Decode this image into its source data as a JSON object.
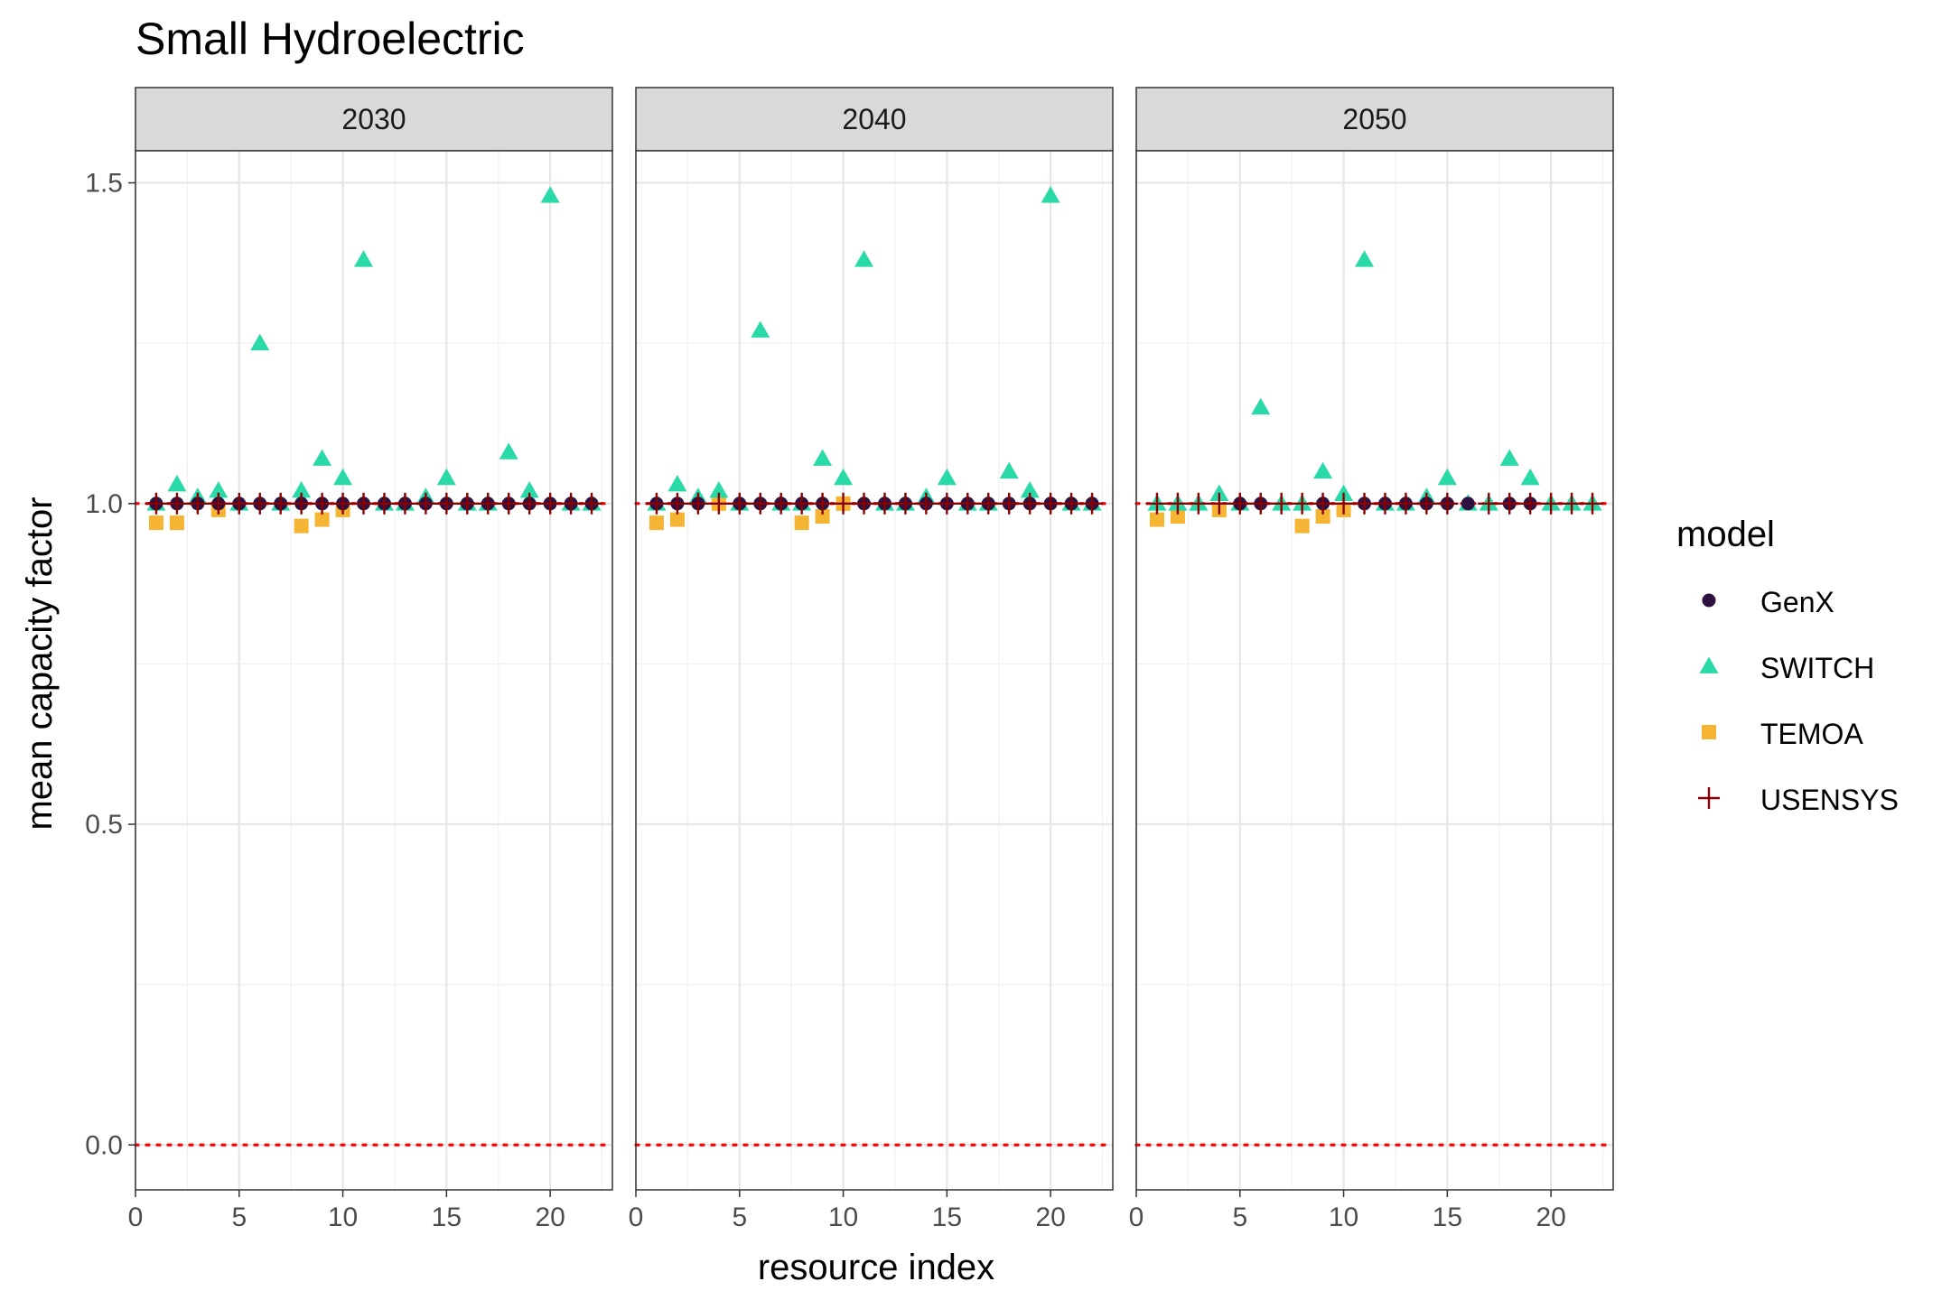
{
  "title": "Small Hydroelectric",
  "chart_data": {
    "type": "scatter",
    "title": "Small Hydroelectric",
    "xlabel": "resource index",
    "ylabel": "mean capacity factor",
    "xlim": [
      0,
      23
    ],
    "ylim": [
      -0.07,
      1.55
    ],
    "x_ticks": [
      0,
      5,
      10,
      15,
      20
    ],
    "y_ticks": [
      0.0,
      0.5,
      1.0,
      1.5
    ],
    "y_tick_labels": [
      "0.0",
      "0.5",
      "1.0",
      "1.5"
    ],
    "reference_lines": [
      0,
      1
    ],
    "reference_line_color": "#ff0000",
    "grid": true,
    "legend_title": "model",
    "legend_position": "right",
    "series_styles": [
      {
        "name": "GenX",
        "shape": "circle",
        "color": "#2d1140"
      },
      {
        "name": "SWITCH",
        "shape": "triangle",
        "color": "#2ad9a8"
      },
      {
        "name": "TEMOA",
        "shape": "square",
        "color": "#f5b431"
      },
      {
        "name": "USENSYS",
        "shape": "plus",
        "color": "#8b0000"
      }
    ],
    "panels": [
      {
        "label": "2030",
        "series": [
          {
            "name": "GenX",
            "x": [
              1,
              2,
              3,
              4,
              5,
              6,
              7,
              8,
              9,
              10,
              11,
              12,
              13,
              14,
              15,
              16,
              17,
              18,
              19,
              20,
              21,
              22
            ],
            "y": [
              1,
              1,
              1,
              1,
              1,
              1,
              1,
              1,
              1,
              1,
              1,
              1,
              1,
              1,
              1,
              1,
              1,
              1,
              1,
              1,
              1,
              1
            ]
          },
          {
            "name": "SWITCH",
            "x": [
              1,
              2,
              3,
              4,
              5,
              6,
              7,
              8,
              9,
              10,
              11,
              12,
              13,
              14,
              15,
              16,
              17,
              18,
              19,
              20,
              21,
              22
            ],
            "y": [
              1.0,
              1.03,
              1.01,
              1.02,
              1.0,
              1.25,
              1.0,
              1.02,
              1.07,
              1.04,
              1.38,
              1.0,
              1.0,
              1.01,
              1.04,
              1.0,
              1.0,
              1.08,
              1.02,
              1.48,
              1.0,
              1.0
            ]
          },
          {
            "name": "TEMOA",
            "x": [
              1,
              2,
              4,
              8,
              9,
              10
            ],
            "y": [
              0.97,
              0.97,
              0.99,
              0.965,
              0.975,
              0.99
            ]
          },
          {
            "name": "USENSYS",
            "x": [
              1,
              2,
              3,
              4,
              5,
              6,
              7,
              8,
              9,
              10,
              11,
              12,
              13,
              14,
              15,
              16,
              17,
              18,
              19,
              20,
              21,
              22
            ],
            "y": [
              1,
              1,
              1,
              1,
              1,
              1,
              1,
              1,
              1,
              1,
              1,
              1,
              1,
              1,
              1,
              1,
              1,
              1,
              1,
              1,
              1,
              1
            ]
          }
        ]
      },
      {
        "label": "2040",
        "series": [
          {
            "name": "GenX",
            "x": [
              1,
              2,
              3,
              5,
              6,
              7,
              8,
              9,
              11,
              12,
              13,
              14,
              15,
              16,
              17,
              18,
              19,
              20,
              21,
              22
            ],
            "y": [
              1,
              1,
              1,
              1,
              1,
              1,
              1,
              1,
              1,
              1,
              1,
              1,
              1,
              1,
              1,
              1,
              1,
              1,
              1,
              1
            ]
          },
          {
            "name": "SWITCH",
            "x": [
              1,
              2,
              3,
              4,
              5,
              6,
              7,
              8,
              9,
              10,
              11,
              12,
              13,
              14,
              15,
              16,
              17,
              18,
              19,
              20,
              21,
              22
            ],
            "y": [
              1.0,
              1.03,
              1.01,
              1.02,
              1.0,
              1.27,
              1.0,
              1.0,
              1.07,
              1.04,
              1.38,
              1.0,
              1.0,
              1.01,
              1.04,
              1.0,
              1.0,
              1.05,
              1.02,
              1.48,
              1.0,
              1.0
            ]
          },
          {
            "name": "TEMOA",
            "x": [
              1,
              2,
              4,
              8,
              9,
              10
            ],
            "y": [
              0.97,
              0.975,
              1.0,
              0.97,
              0.98,
              1.0
            ]
          },
          {
            "name": "USENSYS",
            "x": [
              1,
              2,
              3,
              4,
              5,
              6,
              7,
              8,
              9,
              10,
              11,
              12,
              13,
              14,
              15,
              16,
              17,
              18,
              19,
              20,
              21,
              22
            ],
            "y": [
              1,
              1,
              1,
              1,
              1,
              1,
              1,
              1,
              1,
              1,
              1,
              1,
              1,
              1,
              1,
              1,
              1,
              1,
              1,
              1,
              1,
              1
            ]
          }
        ]
      },
      {
        "label": "2050",
        "series": [
          {
            "name": "GenX",
            "x": [
              5,
              6,
              9,
              11,
              12,
              13,
              14,
              15,
              16,
              18,
              19
            ],
            "y": [
              1,
              1,
              1,
              1,
              1,
              1,
              1,
              1,
              1,
              1,
              1
            ]
          },
          {
            "name": "SWITCH",
            "x": [
              1,
              2,
              3,
              4,
              5,
              6,
              7,
              8,
              9,
              10,
              11,
              12,
              13,
              14,
              15,
              16,
              17,
              18,
              19,
              20,
              21,
              22
            ],
            "y": [
              1.0,
              1.0,
              1.0,
              1.015,
              1.0,
              1.15,
              1.0,
              1.0,
              1.05,
              1.015,
              1.38,
              1.0,
              1.0,
              1.01,
              1.04,
              1.0,
              1.0,
              1.07,
              1.04,
              1.0,
              1.0,
              1.0
            ]
          },
          {
            "name": "TEMOA",
            "x": [
              1,
              2,
              4,
              8,
              9,
              10
            ],
            "y": [
              0.975,
              0.98,
              0.99,
              0.965,
              0.98,
              0.99
            ]
          },
          {
            "name": "USENSYS",
            "x": [
              1,
              2,
              3,
              4,
              5,
              6,
              7,
              8,
              9,
              10,
              11,
              12,
              13,
              14,
              15,
              17,
              18,
              19,
              20,
              21,
              22
            ],
            "y": [
              1,
              1,
              1,
              1,
              1,
              1,
              1,
              1,
              1,
              1,
              1,
              1,
              1,
              1,
              1,
              1,
              1,
              1,
              1,
              1,
              1
            ]
          }
        ]
      }
    ]
  }
}
